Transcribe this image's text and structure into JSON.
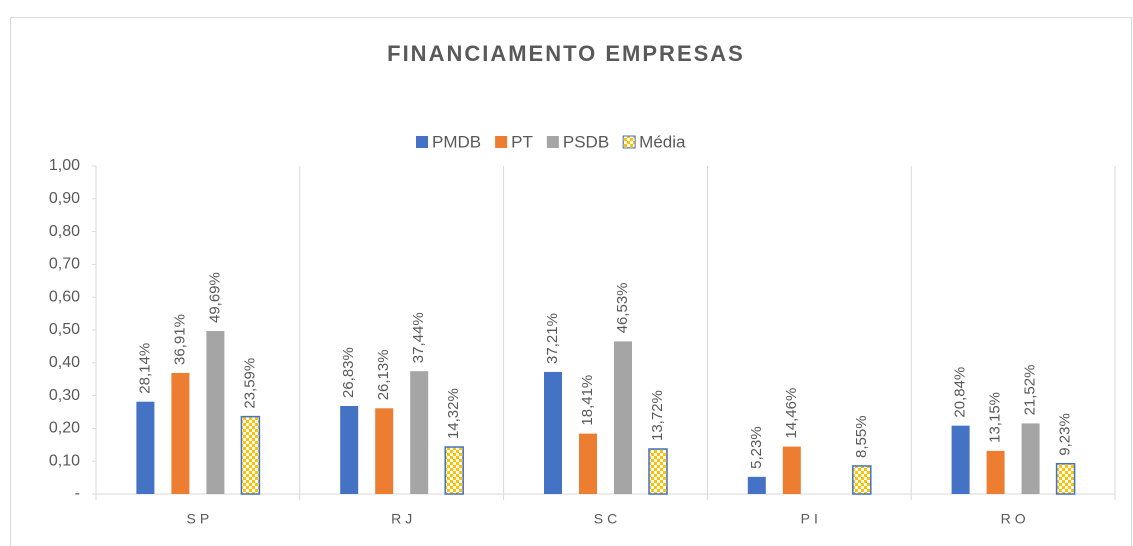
{
  "chart_data": {
    "type": "bar",
    "title": "FINANCIAMENTO EMPRESAS",
    "categories": [
      "SP",
      "RJ",
      "SC",
      "PI",
      "RO"
    ],
    "series": [
      {
        "name": "PMDB",
        "color": "#4472c4",
        "values": [
          0.2814,
          0.2683,
          0.3721,
          0.0523,
          0.2084
        ],
        "value_labels": [
          "28,14%",
          "26,83%",
          "37,21%",
          "5,23%",
          "20,84%"
        ]
      },
      {
        "name": "PT",
        "color": "#ed7d31",
        "values": [
          0.3691,
          0.2613,
          0.1841,
          0.1446,
          0.1315
        ],
        "value_labels": [
          "36,91%",
          "26,13%",
          "18,41%",
          "14,46%",
          "13,15%"
        ]
      },
      {
        "name": "PSDB",
        "color": "#a5a5a5",
        "values": [
          0.4969,
          0.3744,
          0.4653,
          null,
          0.2152
        ],
        "value_labels": [
          "49,69%",
          "37,44%",
          "46,53%",
          null,
          "21,52%"
        ]
      },
      {
        "name": "Média",
        "color": "#ffc000",
        "pattern": "checker",
        "values": [
          0.2359,
          0.1432,
          0.1372,
          0.0855,
          0.0923
        ],
        "value_labels": [
          "23,59%",
          "14,32%",
          "13,72%",
          "8,55%",
          "9,23%"
        ]
      }
    ],
    "ylim": [
      0,
      1
    ],
    "yticks": [
      {
        "value": 0,
        "label": "-"
      },
      {
        "value": 0.1,
        "label": "0,10"
      },
      {
        "value": 0.2,
        "label": "0,20"
      },
      {
        "value": 0.3,
        "label": "0,30"
      },
      {
        "value": 0.4,
        "label": "0,40"
      },
      {
        "value": 0.5,
        "label": "0,50"
      },
      {
        "value": 0.6,
        "label": "0,60"
      },
      {
        "value": 0.7,
        "label": "0,70"
      },
      {
        "value": 0.8,
        "label": "0,80"
      },
      {
        "value": 0.9,
        "label": "0,90"
      },
      {
        "value": 1,
        "label": "1,00"
      }
    ],
    "legend": "top"
  }
}
